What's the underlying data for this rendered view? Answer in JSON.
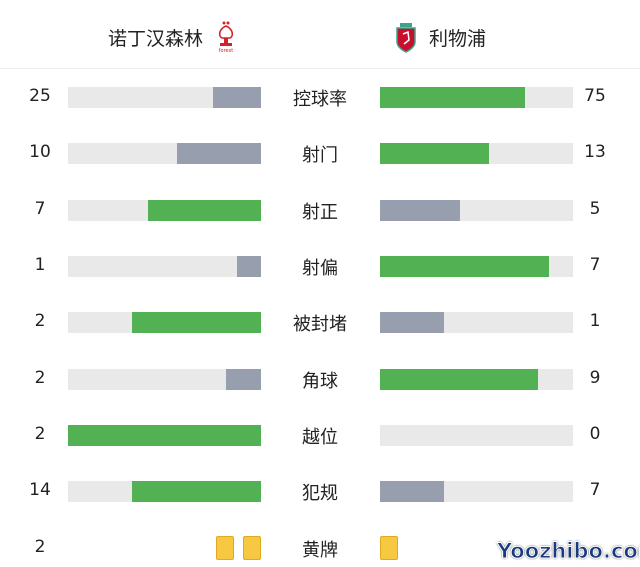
{
  "header": {
    "home_team": "诺丁汉森林",
    "away_team": "利物浦",
    "home_crest": "nottingham-forest-crest",
    "away_crest": "liverpool-crest"
  },
  "colors": {
    "leading": "#52b152",
    "trailing": "#979eae",
    "track": "#e9e9ea",
    "card": "#f7c842"
  },
  "stats": [
    {
      "label": "控球率",
      "home": 25,
      "away": 75
    },
    {
      "label": "射门",
      "home": 10,
      "away": 13
    },
    {
      "label": "射正",
      "home": 7,
      "away": 5
    },
    {
      "label": "射偏",
      "home": 1,
      "away": 7
    },
    {
      "label": "被封堵",
      "home": 2,
      "away": 1
    },
    {
      "label": "角球",
      "home": 2,
      "away": 9
    },
    {
      "label": "越位",
      "home": 2,
      "away": 0
    },
    {
      "label": "犯规",
      "home": 14,
      "away": 7
    }
  ],
  "yellow_cards": {
    "label": "黄牌",
    "home": 2,
    "away": 1
  },
  "watermark": "Yoozhibo.com"
}
